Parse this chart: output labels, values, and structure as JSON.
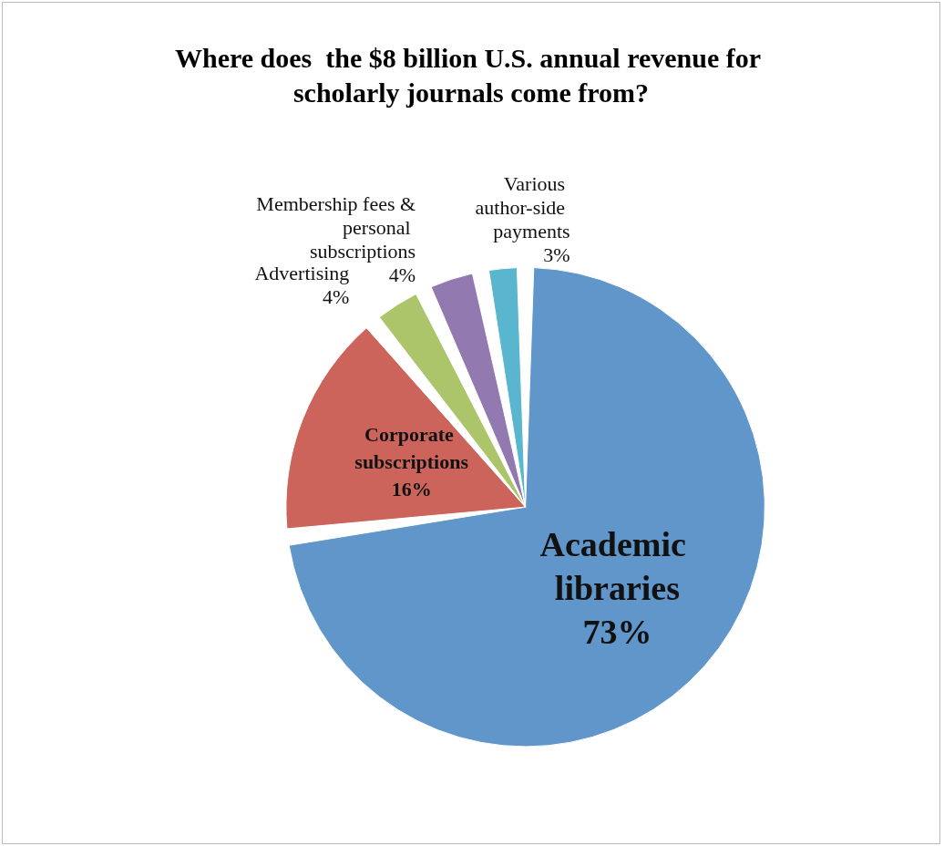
{
  "chart_data": {
    "type": "pie",
    "title": "Where does  the $8 billion U.S. annual revenue for scholarly journals come from?",
    "categories": [
      "Academic libraries",
      "Corporate subscriptions",
      "Advertising",
      "Membership fees & personal subscriptions",
      "Various author-side payments"
    ],
    "values": [
      73,
      16,
      4,
      4,
      3
    ],
    "colors": [
      "#6096c9",
      "#cc645b",
      "#adc56a",
      "#9279b0",
      "#5ab6cf"
    ],
    "value_labels": [
      "73%",
      "16%",
      "4%",
      "4%",
      "3%"
    ],
    "legend": false
  }
}
